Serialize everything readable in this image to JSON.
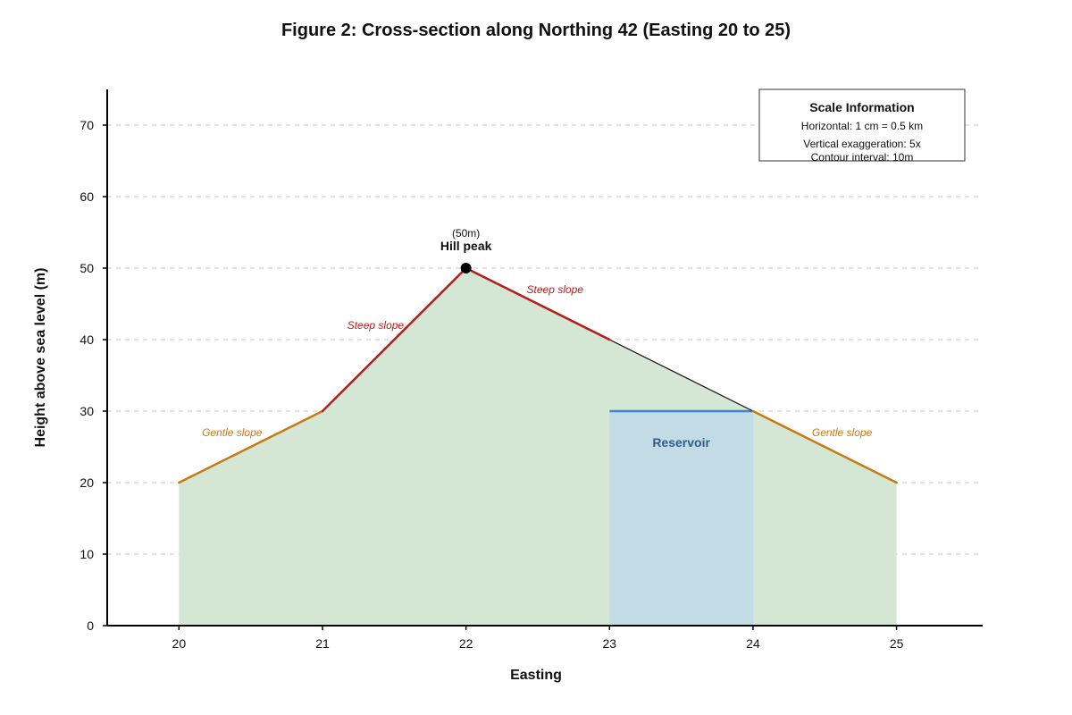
{
  "colors": {
    "terrain_fill": "#d4e6d4",
    "reservoir_fill": "#c2dbe4",
    "reservoir_line": "#3a86d4",
    "reservoir_text": "#2f5f8f",
    "steep": "#b71c1c",
    "gentle": "#c77a16",
    "profile_line": "#111111",
    "grid": "#d0d0d0"
  },
  "chart_data": {
    "type": "area",
    "title": "Figure 2: Cross-section along Northing 42 (Easting 20 to 25)",
    "xlabel": "Easting",
    "ylabel": "Height above sea level (m)",
    "xlim": [
      19.5,
      25.6
    ],
    "ylim": [
      0,
      75
    ],
    "x_ticks": [
      20,
      21,
      22,
      23,
      24,
      25
    ],
    "y_ticks": [
      0,
      10,
      20,
      30,
      40,
      50,
      60,
      70
    ],
    "grid": "horizontal dashed",
    "profile": {
      "x": [
        20,
        21,
        22,
        23,
        24,
        25
      ],
      "y": [
        20,
        30,
        50,
        40,
        30,
        20
      ]
    },
    "slope_segments": [
      {
        "x": [
          20,
          21
        ],
        "y": [
          20,
          30
        ],
        "kind": "gentle"
      },
      {
        "x": [
          21,
          22
        ],
        "y": [
          30,
          50
        ],
        "kind": "steep"
      },
      {
        "x": [
          22,
          23
        ],
        "y": [
          50,
          40
        ],
        "kind": "steep"
      },
      {
        "x": [
          24,
          25
        ],
        "y": [
          30,
          20
        ],
        "kind": "gentle"
      }
    ],
    "reservoir": {
      "x": [
        23,
        24
      ],
      "water_level": 30,
      "label": "Reservoir"
    },
    "peak": {
      "x": 22,
      "y": 50,
      "label": "Hill peak",
      "height_label": "(50m)"
    },
    "annotations": [
      {
        "text": "Gentle slope",
        "x": 20.37,
        "y": 26.5,
        "kind": "gentle"
      },
      {
        "text": "Steep slope",
        "x": 21.37,
        "y": 41.5,
        "kind": "steep"
      },
      {
        "text": "Steep slope",
        "x": 22.62,
        "y": 46.5,
        "kind": "steep"
      },
      {
        "text": "Gentle slope",
        "x": 24.62,
        "y": 26.5,
        "kind": "gentle"
      }
    ],
    "legend_box": {
      "position": "top-right",
      "title": "Scale Information",
      "lines": [
        "Horizontal: 1 cm = 0.5 km",
        "Vertical exaggeration: 5x",
        "Contour interval: 10m"
      ]
    }
  }
}
